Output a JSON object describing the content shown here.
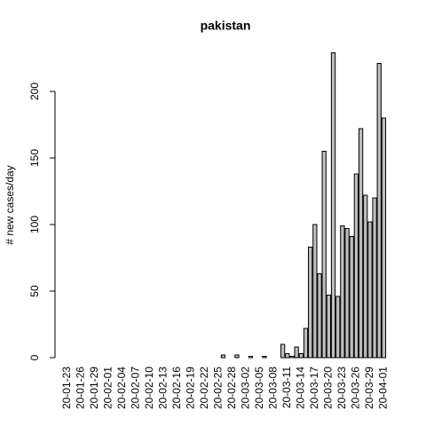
{
  "chart_data": {
    "type": "bar",
    "title": "pakistan",
    "y_label": "# new cases/day",
    "color": "#bebebe",
    "categories": [
      "20-01-23",
      null,
      null,
      "20-01-26",
      null,
      null,
      "20-01-29",
      null,
      null,
      "20-02-01",
      null,
      null,
      "20-02-04",
      null,
      null,
      "20-02-07",
      null,
      null,
      "20-02-10",
      null,
      null,
      "20-02-13",
      null,
      null,
      "20-02-16",
      null,
      null,
      "20-02-19",
      null,
      null,
      "20-02-22",
      null,
      null,
      "20-02-25",
      null,
      null,
      "20-02-28",
      null,
      null,
      "20-03-02",
      null,
      null,
      "20-03-05",
      null,
      null,
      "20-03-08",
      null,
      null,
      "20-03-11",
      null,
      null,
      "20-03-14",
      null,
      null,
      "20-03-17",
      null,
      null,
      "20-03-20",
      null,
      null,
      "20-03-23",
      null,
      null,
      "20-03-26",
      null,
      null,
      "20-03-29",
      null,
      null,
      "20-04-01"
    ],
    "values": [
      0,
      0,
      0,
      0,
      0,
      0,
      0,
      0,
      0,
      0,
      0,
      0,
      0,
      0,
      0,
      0,
      0,
      0,
      0,
      0,
      0,
      0,
      0,
      0,
      0,
      0,
      0,
      0,
      0,
      0,
      0,
      0,
      0,
      0,
      2,
      0,
      0,
      2,
      0,
      0,
      1,
      0,
      0,
      1,
      0,
      0,
      0,
      10,
      3,
      1,
      8,
      3,
      22,
      83,
      100,
      63,
      155,
      47,
      229,
      46,
      99,
      97,
      91,
      138,
      172,
      122,
      102,
      120,
      221,
      180
    ],
    "ylim": [
      0,
      230
    ],
    "yticks": [
      0,
      50,
      100,
      150,
      200
    ]
  }
}
